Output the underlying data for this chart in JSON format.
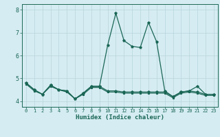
{
  "x": [
    0,
    1,
    2,
    3,
    4,
    5,
    6,
    7,
    8,
    9,
    10,
    11,
    12,
    13,
    14,
    15,
    16,
    17,
    18,
    19,
    20,
    21,
    22,
    23
  ],
  "line_main": [
    4.8,
    4.5,
    4.3,
    4.7,
    4.5,
    4.45,
    4.1,
    4.35,
    4.65,
    4.65,
    6.45,
    7.85,
    6.65,
    6.4,
    6.35,
    7.45,
    6.6,
    4.45,
    4.2,
    4.4,
    4.45,
    4.65,
    4.3,
    4.3
  ],
  "line_low1": [
    4.8,
    4.5,
    4.3,
    4.7,
    4.5,
    4.45,
    4.1,
    4.35,
    4.65,
    4.65,
    4.45,
    4.45,
    4.4,
    4.4,
    4.4,
    4.4,
    4.4,
    4.4,
    4.2,
    4.4,
    4.45,
    4.4,
    4.3,
    4.3
  ],
  "line_low2": [
    4.75,
    4.45,
    4.3,
    4.65,
    4.5,
    4.4,
    4.1,
    4.3,
    4.6,
    4.6,
    4.4,
    4.4,
    4.35,
    4.35,
    4.35,
    4.35,
    4.35,
    4.35,
    4.15,
    4.35,
    4.4,
    4.35,
    4.25,
    4.25
  ],
  "bg_color": "#d5ecf2",
  "grid_color_major": "#b8d4dc",
  "grid_color_minor": "#c8e0e8",
  "line_color": "#1a6655",
  "xlabel": "Humidex (Indice chaleur)",
  "ylim": [
    3.75,
    8.25
  ],
  "xlim": [
    -0.5,
    23.5
  ],
  "yticks": [
    4,
    5,
    6,
    7,
    8
  ],
  "xticks": [
    0,
    1,
    2,
    3,
    4,
    5,
    6,
    7,
    8,
    9,
    10,
    11,
    12,
    13,
    14,
    15,
    16,
    17,
    18,
    19,
    20,
    21,
    22,
    23
  ],
  "figsize": [
    3.2,
    2.0
  ],
  "dpi": 100
}
